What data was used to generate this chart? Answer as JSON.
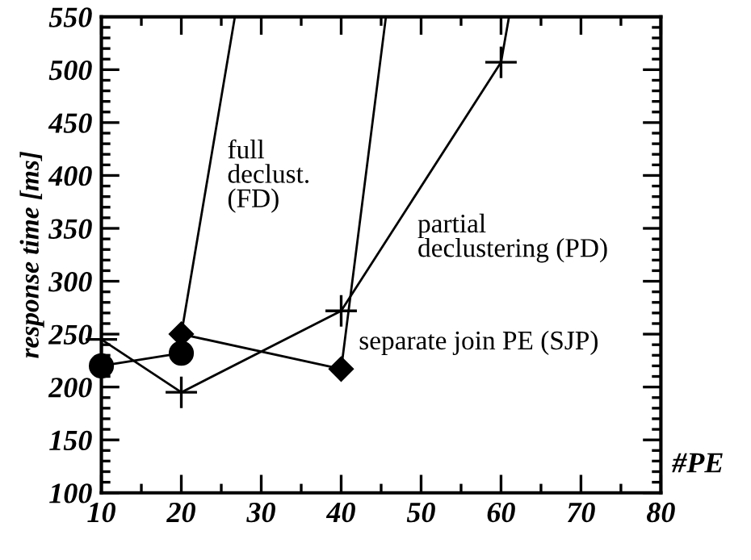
{
  "chart_data": {
    "type": "line",
    "xlabel": "#PE",
    "ylabel": "response time [ms]",
    "xlim": [
      10,
      80
    ],
    "ylim": [
      100,
      550
    ],
    "xticks": [
      10,
      20,
      30,
      40,
      50,
      60,
      70,
      80
    ],
    "yticks": [
      100,
      150,
      200,
      250,
      300,
      350,
      400,
      450,
      500,
      550
    ],
    "grid": false,
    "legend": false,
    "series": [
      {
        "color": "#000000",
        "marker": "circle",
        "x": [
          10,
          20
        ],
        "values": [
          220,
          232
        ]
      },
      {
        "color": "#000000",
        "marker": "diamond",
        "x": [
          20,
          40
        ],
        "values": [
          250,
          217
        ]
      },
      {
        "color": "#000000",
        "marker": "none",
        "x": [
          20,
          26.7
        ],
        "values": [
          250,
          550
        ]
      },
      {
        "color": "#000000",
        "marker": "none",
        "x": [
          40,
          45.6
        ],
        "values": [
          217,
          550
        ]
      },
      {
        "color": "#000000",
        "marker": "cross",
        "x": [
          10,
          20,
          40,
          60
        ],
        "values": [
          245,
          195,
          272,
          507
        ]
      },
      {
        "color": "#000000",
        "marker": "none",
        "x": [
          60,
          61
        ],
        "values": [
          507,
          550
        ]
      }
    ],
    "annotations": [
      "full\ndeclust.\n(FD)",
      "partial\ndeclustering (PD)",
      "separate join PE (SJP)"
    ]
  }
}
